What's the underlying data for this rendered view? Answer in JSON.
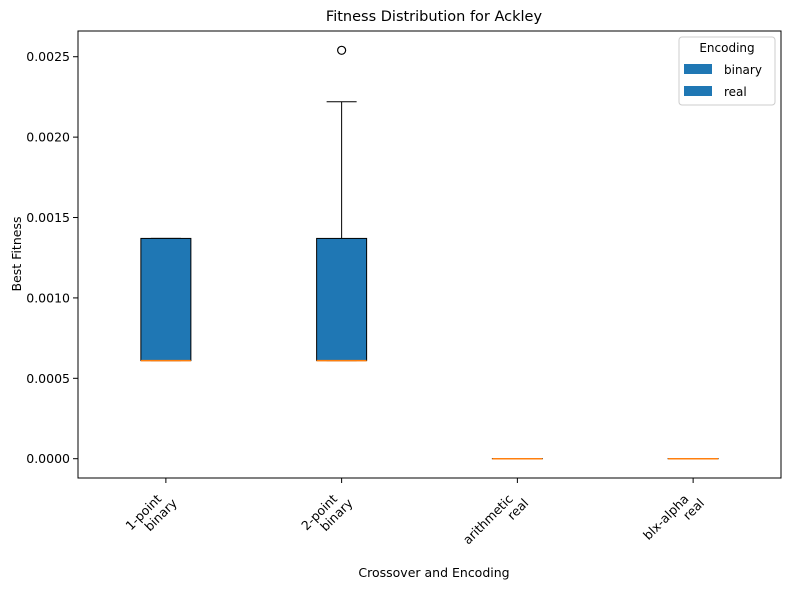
{
  "chart_data": {
    "type": "box",
    "title": "Fitness Distribution for Ackley",
    "xlabel": "Crossover and Encoding",
    "ylabel": "Best Fitness",
    "ylim": [
      -0.00012,
      0.00266
    ],
    "yticks": [
      0.0,
      0.0005,
      0.001,
      0.0015,
      0.002,
      0.0025
    ],
    "ytick_labels": [
      "0.0000",
      "0.0005",
      "0.0010",
      "0.0015",
      "0.0020",
      "0.0025"
    ],
    "categories": [
      {
        "line1": "1-point",
        "line2": "binary"
      },
      {
        "line1": "2-point",
        "line2": "binary"
      },
      {
        "line1": "arithmetic",
        "line2": "real"
      },
      {
        "line1": "blx-alpha",
        "line2": "real"
      }
    ],
    "boxes": [
      {
        "encoding": "binary",
        "whisker_low": 0.00061,
        "q1": 0.00061,
        "median": 0.00061,
        "q3": 0.00137,
        "whisker_high": 0.00137,
        "outliers": []
      },
      {
        "encoding": "binary",
        "whisker_low": 0.00061,
        "q1": 0.00061,
        "median": 0.00061,
        "q3": 0.00137,
        "whisker_high": 0.00222,
        "outliers": [
          0.00254
        ]
      },
      {
        "encoding": "real",
        "whisker_low": 0.0,
        "q1": 0.0,
        "median": 0.0,
        "q3": 0.0,
        "whisker_high": 0.0,
        "outliers": []
      },
      {
        "encoding": "real",
        "whisker_low": 0.0,
        "q1": 0.0,
        "median": 0.0,
        "q3": 0.0,
        "whisker_high": 0.0,
        "outliers": []
      }
    ],
    "legend": {
      "title": "Encoding",
      "placement": "top-right",
      "entries": [
        {
          "label": "binary",
          "color": "#1f77b4"
        },
        {
          "label": "real",
          "color": "#1f77b4"
        }
      ]
    },
    "colors": {
      "box_fill": "#1f77b4",
      "median": "#ff7f0e",
      "edge": "#000000"
    },
    "grid": false
  }
}
